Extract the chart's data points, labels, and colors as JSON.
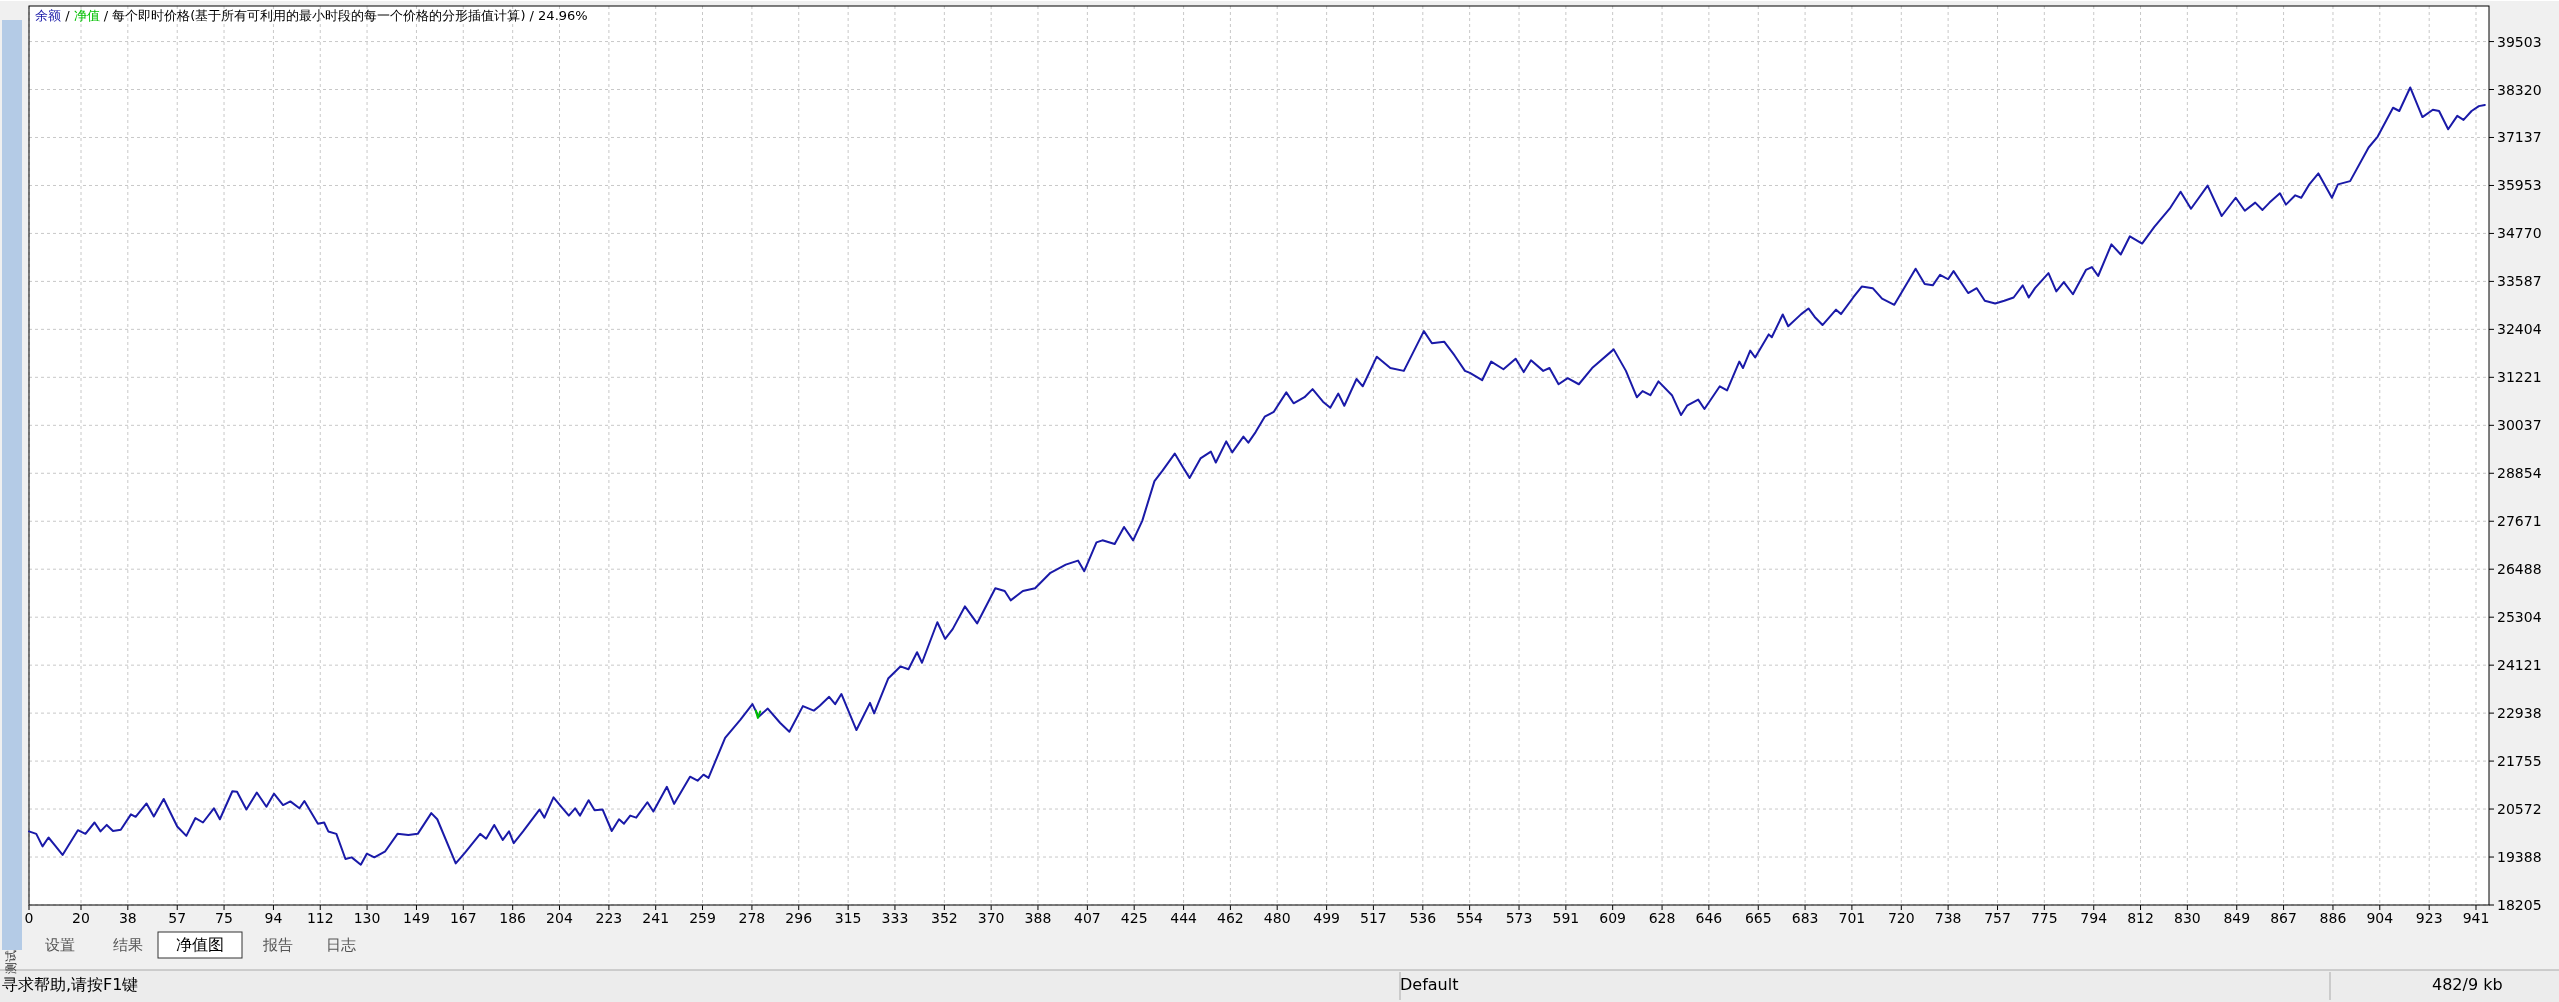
{
  "chart_data": {
    "type": "line",
    "title": "/ 每个即时价格(基于所有可利用的最小时段的每一个价格的分形插值计算) / 24.96%",
    "legend": "top left",
    "grid": true,
    "marker": "none",
    "line_style": "solid",
    "xlim": [
      0,
      946
    ],
    "ylim": [
      18205,
      40380
    ],
    "xticks": [
      0,
      20,
      38,
      57,
      75,
      94,
      112,
      130,
      149,
      167,
      186,
      204,
      223,
      241,
      259,
      278,
      296,
      315,
      333,
      352,
      370,
      388,
      407,
      425,
      444,
      462,
      480,
      499,
      517,
      536,
      554,
      573,
      591,
      609,
      628,
      646,
      665,
      683,
      701,
      720,
      738,
      757,
      775,
      794,
      812,
      830,
      849,
      867,
      886,
      904,
      923,
      941
    ],
    "yticks": [
      18205,
      19388,
      20572,
      21755,
      22938,
      24121,
      25304,
      26488,
      27671,
      28854,
      30037,
      31221,
      32404,
      33587,
      34770,
      35953,
      37137,
      38320,
      39503
    ],
    "series": [
      {
        "name": "余额",
        "color": "#1a1aa8",
        "x": [
          0,
          2.8,
          5.2,
          7.5,
          9.9,
          12.9,
          18.8,
          21.7,
          25.2,
          27.5,
          29.9,
          32.3,
          35.3,
          39.2,
          41,
          45.2,
          48,
          51.8,
          57,
          60.5,
          64,
          66.9,
          71.1,
          73.4,
          78.2,
          80,
          83.6,
          87.6,
          91.3,
          94.2,
          97.7,
          100.5,
          104,
          105.9,
          111.1,
          113.5,
          115.1,
          118.2,
          121.7,
          124.1,
          127.6,
          129.9,
          132.8,
          137,
          141.7,
          145.9,
          149.5,
          154.7,
          157,
          164.1,
          167.6,
          173.5,
          175.8,
          178.9,
          182.2,
          184.6,
          186.4,
          190,
          196.3,
          198.2,
          201.7,
          204.8,
          207.6,
          210,
          211.9,
          215.2,
          217.5,
          220.6,
          224.1,
          226.9,
          228.8,
          231.2,
          233.5,
          237.8,
          240.1,
          245.3,
          248.1,
          254.2,
          257.1,
          259.4,
          261.3,
          267.7,
          273.6,
          278.2,
          280.6,
          284.1,
          288.8,
          292.4,
          297.6,
          301.8,
          304.1,
          307.7,
          310,
          312.4,
          318.2,
          323.4,
          325,
          330.4,
          335.1,
          338.2,
          341.5,
          343.4,
          349.3,
          352.3,
          355.2,
          359.9,
          364.6,
          371.6,
          375.2,
          377.5,
          382.2,
          386.9,
          392.8,
          398.7,
          403.4,
          405.8,
          410.5,
          412.8,
          417.5,
          421.1,
          424.6,
          428.1,
          432.8,
          435.9,
          440.6,
          443.4,
          446.3,
          450.5,
          454.5,
          456.4,
          460.4,
          462.7,
          467,
          468.9,
          471.7,
          475.2,
          478.7,
          483.5,
          486.3,
          490.5,
          493.6,
          497.6,
          500.4,
          503.5,
          505.8,
          510.5,
          512.9,
          518.3,
          523.5,
          528.7,
          536.4,
          539.5,
          544.2,
          548.2,
          552.2,
          554.1,
          558.8,
          562.3,
          567,
          571.7,
          574.8,
          577.6,
          582.3,
          584.7,
          588.2,
          591.7,
          596,
          601.1,
          609.4,
          614.1,
          618.3,
          620.5,
          623.5,
          626.6,
          631.8,
          635.3,
          637.6,
          641.9,
          644.3,
          650.2,
          653,
          657.7,
          659.1,
          661.9,
          663.8,
          669,
          670.2,
          674.4,
          676.5,
          681.5,
          684.3,
          686.7,
          689.7,
          694.9,
          696.8,
          701.5,
          704.8,
          709,
          712.6,
          717.3,
          725.5,
          729,
          732.1,
          734.9,
          738,
          740.1,
          745.7,
          749,
          752.1,
          756.1,
          759.6,
          763.2,
          766.7,
          769,
          771.4,
          776.6,
          779.6,
          782.5,
          786,
          791,
          793.3,
          795.7,
          800.8,
          804.4,
          807.9,
          812.6,
          817.3,
          823.2,
          827.4,
          831.4,
          837.8,
          843.2,
          848.6,
          852.1,
          856.1,
          858.9,
          861.6,
          865.6,
          867.9,
          871.5,
          873.8,
          876.9,
          880.4,
          885.6,
          887.9,
          892.6,
          899.7,
          903.2,
          909.1,
          911.5,
          915.7,
          920.4,
          924.4,
          926.8,
          930.3,
          933.8,
          936.2,
          939.3,
          942.1,
          944.4
        ],
        "values": [
          20020,
          19960,
          19650,
          19870,
          19680,
          19440,
          20050,
          19960,
          20240,
          20020,
          20180,
          20030,
          20060,
          20440,
          20380,
          20710,
          20390,
          20820,
          20140,
          19910,
          20350,
          20240,
          20590,
          20320,
          21010,
          21000,
          20560,
          20980,
          20630,
          20950,
          20670,
          20760,
          20590,
          20770,
          20210,
          20240,
          20020,
          19960,
          19340,
          19380,
          19200,
          19470,
          19380,
          19530,
          19960,
          19930,
          19960,
          20470,
          20320,
          19230,
          19490,
          19960,
          19840,
          20180,
          19810,
          20020,
          19730,
          20020,
          20560,
          20360,
          20860,
          20620,
          20410,
          20590,
          20410,
          20790,
          20540,
          20560,
          20030,
          20320,
          20210,
          20410,
          20360,
          20740,
          20510,
          21120,
          20700,
          21370,
          21270,
          21420,
          21340,
          22330,
          22780,
          23160,
          22850,
          23050,
          22700,
          22480,
          23110,
          23000,
          23120,
          23340,
          23160,
          23410,
          22520,
          23190,
          22930,
          23790,
          24090,
          24020,
          24440,
          24180,
          25180,
          24770,
          25010,
          25570,
          25150,
          26020,
          25950,
          25720,
          25950,
          26020,
          26400,
          26600,
          26700,
          26440,
          27150,
          27200,
          27110,
          27530,
          27200,
          27680,
          28660,
          28920,
          29340,
          29040,
          28740,
          29220,
          29390,
          29120,
          29640,
          29370,
          29760,
          29610,
          29870,
          30250,
          30370,
          30850,
          30580,
          30730,
          30930,
          30620,
          30470,
          30820,
          30520,
          31180,
          31000,
          31730,
          31450,
          31380,
          32360,
          32060,
          32100,
          31760,
          31380,
          31330,
          31150,
          31610,
          31420,
          31680,
          31350,
          31640,
          31380,
          31450,
          31050,
          31200,
          31050,
          31450,
          31910,
          31380,
          30730,
          30880,
          30780,
          31120,
          30780,
          30290,
          30520,
          30670,
          30440,
          31000,
          30900,
          31610,
          31450,
          31880,
          31710,
          32280,
          32210,
          32770,
          32480,
          32780,
          32920,
          32710,
          32510,
          32890,
          32780,
          33190,
          33460,
          33420,
          33160,
          33010,
          33900,
          33520,
          33490,
          33750,
          33640,
          33840,
          33300,
          33420,
          33110,
          33040,
          33110,
          33190,
          33490,
          33190,
          33420,
          33790,
          33340,
          33570,
          33270,
          33870,
          33940,
          33720,
          34500,
          34250,
          34700,
          34520,
          34930,
          35380,
          35800,
          35380,
          35950,
          35200,
          35650,
          35330,
          35530,
          35350,
          35530,
          35760,
          35480,
          35710,
          35650,
          35980,
          36250,
          35650,
          35980,
          36060,
          36890,
          37160,
          37870,
          37790,
          38370,
          37640,
          37820,
          37790,
          37340,
          37670,
          37570,
          37790,
          37910,
          37940
        ]
      },
      {
        "name": "净值",
        "color": "#00c000",
        "x": [
          279.5,
          280.3,
          281.2
        ],
        "values": [
          23000,
          22820,
          22980
        ]
      }
    ],
    "annotations": [
      "测试",
      "设置",
      "结果",
      "净值图",
      "报告",
      "日志",
      "寻求帮助,请按F1键",
      "Default",
      "482/9 kb",
      "/"
    ]
  }
}
